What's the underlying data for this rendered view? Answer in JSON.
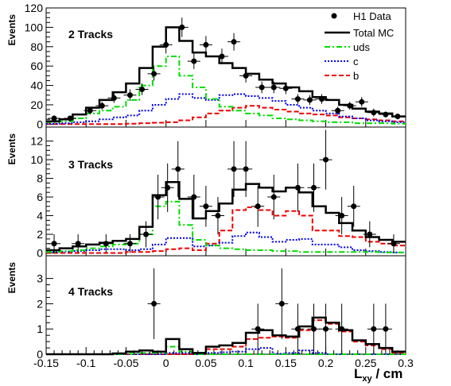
{
  "chart_data": {
    "type": "line",
    "xlabel": "L",
    "xlabel_sub": "xy",
    "xlabel_unit": " / cm",
    "xlim": [
      -0.15,
      0.3
    ],
    "x_ticks": [
      -0.15,
      -0.1,
      -0.05,
      0,
      0.05,
      0.1,
      0.15,
      0.2,
      0.25,
      0.3
    ],
    "x_tick_labels": [
      "-0.15",
      "-0.1",
      "-0.05",
      "0",
      "0.05",
      "0.1",
      "0.15",
      "0.2",
      "0.25",
      "0.3"
    ],
    "bin_edges": [
      -0.15,
      -0.1333,
      -0.1167,
      -0.1,
      -0.0833,
      -0.0667,
      -0.05,
      -0.0333,
      -0.0167,
      0,
      0.0167,
      0.0333,
      0.05,
      0.0667,
      0.0833,
      0.1,
      0.1167,
      0.1333,
      0.15,
      0.1667,
      0.1833,
      0.2,
      0.2167,
      0.2333,
      0.25,
      0.2667,
      0.2833,
      0.3
    ],
    "legend": {
      "placement": "top-right",
      "entries": [
        {
          "label": "H1 Data",
          "style": "marker",
          "color": "#000000"
        },
        {
          "label": "Total MC",
          "style": "solid",
          "color": "#000000"
        },
        {
          "label": "uds",
          "style": "dashdot",
          "color": "#00dd00"
        },
        {
          "label": "c",
          "style": "dotted",
          "color": "#0000ee"
        },
        {
          "label": "b",
          "style": "dashed",
          "color": "#ee0000"
        }
      ]
    },
    "panels": [
      {
        "label": "2 Tracks",
        "ylabel": "Events",
        "ylim": [
          -3,
          120
        ],
        "y_ticks": [
          0,
          20,
          40,
          60,
          80,
          100,
          120
        ],
        "series": [
          {
            "name": "Total MC",
            "color": "#000000",
            "style": "solid",
            "values": [
              3,
              5,
              10,
              17,
              25,
              33,
              42,
              58,
              80,
              100,
              86,
              74,
              70,
              63,
              58,
              52,
              46,
              42,
              38,
              34,
              28,
              25,
              20,
              16,
              13,
              11,
              8
            ]
          },
          {
            "name": "uds",
            "color": "#00dd00",
            "style": "dashdot",
            "values": [
              2,
              3,
              6,
              11,
              14,
              18,
              25,
              40,
              60,
              70,
              50,
              38,
              26,
              18,
              14,
              11,
              9,
              6,
              5,
              4,
              3,
              2,
              2,
              1,
              1,
              1,
              0.5
            ]
          },
          {
            "name": "c",
            "color": "#0000ee",
            "style": "dotted",
            "values": [
              0.5,
              1,
              2,
              3,
              5,
              7,
              9,
              14,
              20,
              26,
              31,
              27,
              25,
              30,
              31,
              29,
              27,
              24,
              20,
              17,
              14,
              11,
              8,
              6,
              4,
              3,
              2
            ]
          },
          {
            "name": "b",
            "color": "#ee0000",
            "style": "dashed",
            "values": [
              0,
              0,
              0,
              0,
              0,
              0,
              0.5,
              1,
              1.5,
              2,
              4,
              7,
              11,
              14,
              17,
              19,
              17,
              15,
              13,
              11,
              10,
              9,
              7,
              6,
              5,
              4,
              3
            ]
          },
          {
            "name": "H1 Data",
            "color": "#000000",
            "style": "points",
            "x": [
              -0.14,
              -0.12,
              -0.095,
              -0.08,
              -0.065,
              -0.045,
              -0.03,
              -0.015,
              0,
              0.02,
              0.035,
              0.05,
              0.07,
              0.085,
              0.1,
              0.12,
              0.135,
              0.15,
              0.165,
              0.18,
              0.195,
              0.215,
              0.23,
              0.245,
              0.26,
              0.275,
              0.29
            ],
            "y": [
              6,
              6,
              14,
              19,
              27,
              30,
              36,
              52,
              82,
              100,
              65,
              82,
              70,
              85,
              50,
              38,
              38,
              37,
              26,
              25,
              26,
              14,
              19,
              23,
              12,
              10,
              8
            ],
            "yerr": [
              3,
              3,
              4,
              4,
              5,
              6,
              6,
              7,
              9,
              10,
              8,
              9,
              8,
              9,
              7,
              6,
              6,
              6,
              5,
              5,
              5,
              4,
              4,
              5,
              4,
              3,
              3
            ]
          }
        ]
      },
      {
        "label": "3 Tracks",
        "ylabel": "Events",
        "ylim": [
          -0.3,
          13.5
        ],
        "y_ticks": [
          0,
          2,
          4,
          6,
          8,
          10,
          12
        ],
        "series": [
          {
            "name": "Total MC",
            "color": "#000000",
            "style": "solid",
            "values": [
              0.3,
              0.5,
              0.7,
              0.9,
              1.1,
              1.3,
              1.5,
              2.8,
              6.2,
              7.6,
              5.8,
              3.7,
              4.5,
              5.3,
              6.8,
              7.4,
              7.0,
              6.6,
              7.0,
              6.5,
              5.0,
              4.3,
              3.2,
              2.4,
              1.7,
              1.4,
              1.2
            ]
          },
          {
            "name": "uds",
            "color": "#00dd00",
            "style": "dashdot",
            "values": [
              0.1,
              0.2,
              0.3,
              0.5,
              0.7,
              0.9,
              1.0,
              2.0,
              5.0,
              5.5,
              3.0,
              1.4,
              0.8,
              0.5,
              0.4,
              0.3,
              0.3,
              0.2,
              0.2,
              0.1,
              0.1,
              0.1,
              0.1,
              0.1,
              0.1,
              0.05,
              0.05
            ]
          },
          {
            "name": "c",
            "color": "#0000ee",
            "style": "dotted",
            "values": [
              0.1,
              0.15,
              0.2,
              0.3,
              0.4,
              0.4,
              0.3,
              0.4,
              0.9,
              1.6,
              1.6,
              0.7,
              0.8,
              1.1,
              1.8,
              2.2,
              1.7,
              1.2,
              1.4,
              1.5,
              0.9,
              0.9,
              0.6,
              0.3,
              0.2,
              0.1,
              0.05
            ]
          },
          {
            "name": "b",
            "color": "#ee0000",
            "style": "dashed",
            "values": [
              0,
              0,
              0,
              0,
              0,
              0,
              0.1,
              0.1,
              0.2,
              0.4,
              0.5,
              0.3,
              1.0,
              2.4,
              4.6,
              4.9,
              4.6,
              4.0,
              4.5,
              4.0,
              2.4,
              2.4,
              1.8,
              1.7,
              1.2,
              1.0,
              0.8
            ]
          },
          {
            "name": "H1 Data",
            "color": "#000000",
            "style": "points",
            "x": [
              -0.14,
              -0.11,
              -0.075,
              -0.045,
              -0.025,
              -0.01,
              0.002,
              0.015,
              0.035,
              0.05,
              0.065,
              0.085,
              0.1,
              0.115,
              0.135,
              0.165,
              0.185,
              0.2,
              0.22,
              0.235,
              0.255,
              0.285
            ],
            "y": [
              1,
              1,
              1,
              1,
              2,
              6,
              7,
              9,
              6,
              5,
              4,
              9,
              9,
              5,
              6,
              7,
              7,
              10,
              4,
              5,
              2,
              1
            ],
            "yerr": [
              1,
              1,
              1,
              1,
              1.4,
              2.4,
              2.6,
              3,
              2.4,
              2.2,
              2,
              3,
              3,
              2.2,
              2.4,
              2.6,
              2.6,
              3.2,
              2,
              2.2,
              1.4,
              1
            ]
          }
        ]
      },
      {
        "label": "4 Tracks",
        "ylabel": "Events",
        "ylim": [
          0,
          3.9
        ],
        "y_ticks": [
          0,
          1,
          2,
          3
        ],
        "series": [
          {
            "name": "Total MC",
            "color": "#000000",
            "style": "solid",
            "values": [
              0,
              0,
              0,
              0,
              0,
              0.03,
              0.1,
              0.15,
              0.1,
              0.6,
              0.2,
              0.05,
              0.3,
              0.35,
              0.45,
              0.85,
              0.95,
              0.75,
              0.7,
              1.1,
              1.45,
              1.25,
              0.95,
              0.55,
              0.4,
              0.25,
              0.1
            ]
          },
          {
            "name": "uds",
            "color": "#00dd00",
            "style": "dashdot",
            "values": [
              0,
              0,
              0,
              0,
              0,
              0,
              0.02,
              0.05,
              0.05,
              0.3,
              0.1,
              0,
              0,
              0,
              0,
              0,
              0,
              0,
              0,
              0,
              0,
              0,
              0,
              0,
              0,
              0,
              0
            ]
          },
          {
            "name": "c",
            "color": "#0000ee",
            "style": "dotted",
            "values": [
              0,
              0,
              0,
              0,
              0,
              0,
              0,
              0,
              0,
              0.05,
              0.05,
              0,
              0.05,
              0.08,
              0.1,
              0.2,
              0.25,
              0.02,
              0.05,
              0.15,
              0.05,
              0,
              0,
              0,
              0,
              0,
              0
            ]
          },
          {
            "name": "b",
            "color": "#ee0000",
            "style": "dashed",
            "values": [
              0,
              0,
              0,
              0,
              0,
              0,
              0,
              0,
              0,
              0,
              0,
              0,
              0.2,
              0.2,
              0.3,
              0.6,
              0.65,
              0.7,
              0.65,
              0.95,
              1.35,
              1.2,
              0.9,
              0.5,
              0.35,
              0.2,
              0.05
            ]
          },
          {
            "name": "H1 Data",
            "color": "#000000",
            "style": "points",
            "x": [
              -0.015,
              0.115,
              0.145,
              0.165,
              0.185,
              0.2,
              0.22,
              0.26,
              0.275
            ],
            "y": [
              2,
              1,
              2,
              1,
              1,
              1,
              1,
              1,
              1
            ],
            "yerr": [
              1.4,
              1,
              1.4,
              1,
              1,
              1,
              1,
              1,
              1
            ]
          }
        ]
      }
    ]
  }
}
